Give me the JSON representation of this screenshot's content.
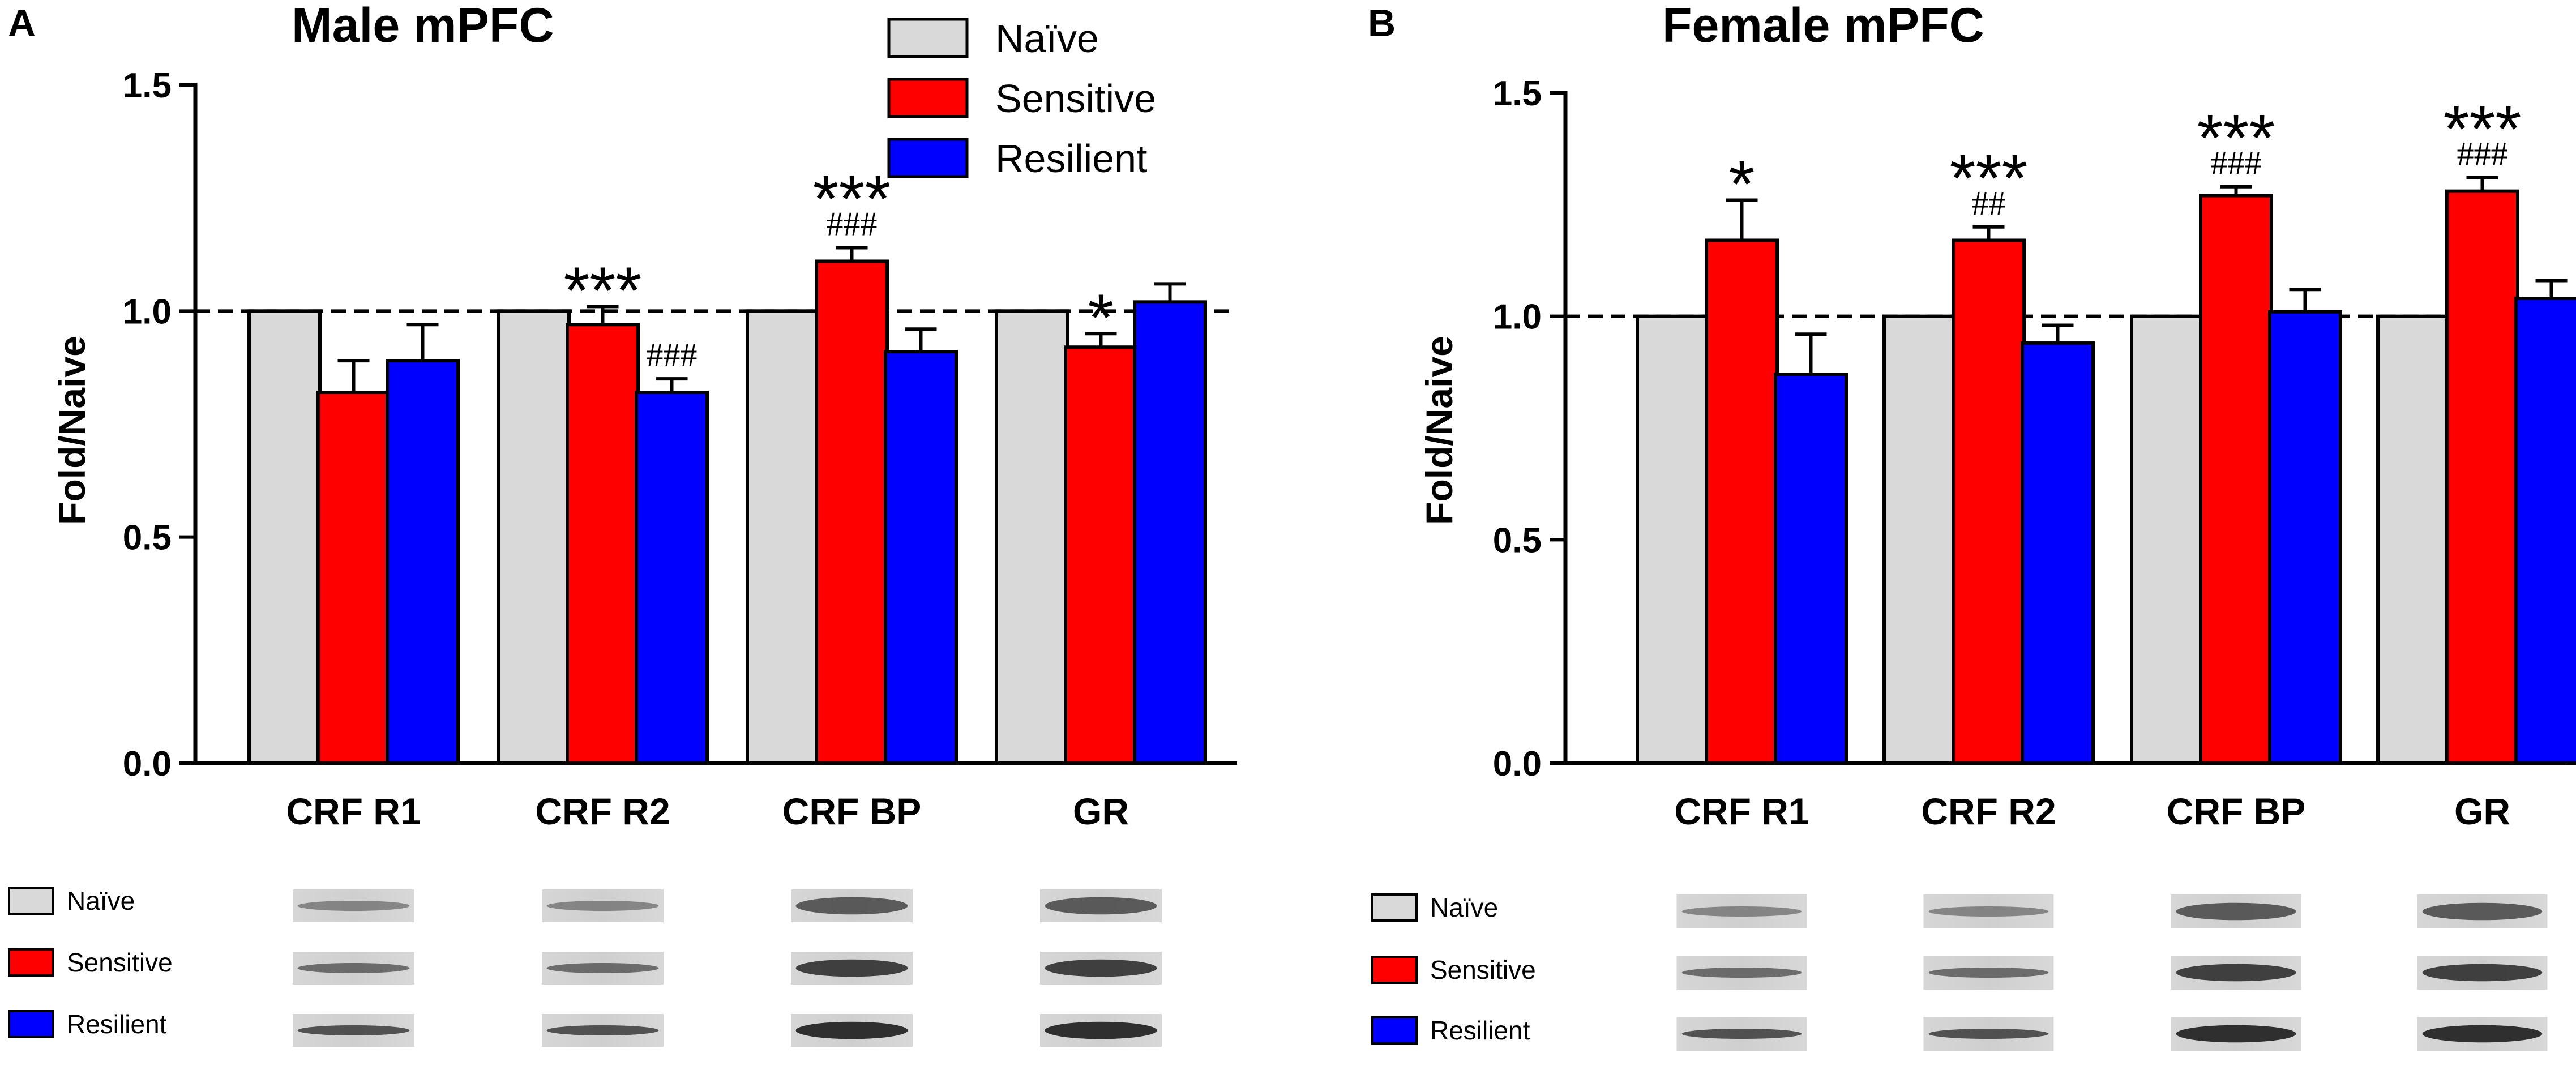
{
  "colors": {
    "naive": "#d9d9d9",
    "sensitive": "#ff0000",
    "resilient": "#0000ff"
  },
  "legend": [
    "Naïve",
    "Sensitive",
    "Resilient"
  ],
  "chart_data": [
    {
      "type": "bar",
      "panel": "A",
      "title": "Male mPFC",
      "xlabel": "",
      "ylabel": "Fold/Naive",
      "ylim": [
        0,
        1.5
      ],
      "yticks": [
        "0.0",
        "0.5",
        "1.0",
        "1.5"
      ],
      "reference_line": 1.0,
      "categories": [
        "CRF R1",
        "CRF R2",
        "CRF BP",
        "GR"
      ],
      "series": [
        {
          "name": "Naïve",
          "values": [
            1.0,
            1.0,
            1.0,
            1.0
          ],
          "errors": [
            0,
            0,
            0,
            0
          ]
        },
        {
          "name": "Sensitive",
          "values": [
            0.82,
            0.97,
            1.11,
            0.92
          ],
          "errors": [
            0.07,
            0.04,
            0.03,
            0.03
          ]
        },
        {
          "name": "Resilient",
          "values": [
            0.89,
            0.82,
            0.91,
            1.02
          ],
          "errors": [
            0.08,
            0.03,
            0.05,
            0.04
          ]
        }
      ],
      "annotations": [
        {
          "category": 1,
          "series": 1,
          "stars": "***",
          "hashes": ""
        },
        {
          "category": 1,
          "series": 2,
          "stars": "",
          "hashes": "###"
        },
        {
          "category": 2,
          "series": 1,
          "stars": "***",
          "hashes": "###"
        },
        {
          "category": 3,
          "series": 1,
          "stars": "*",
          "hashes": ""
        }
      ],
      "blot_legend": [
        "Naïve",
        "Sensitive",
        "Resilient"
      ]
    },
    {
      "type": "bar",
      "panel": "B",
      "title": "Female mPFC",
      "xlabel": "",
      "ylabel": "Fold/Naive",
      "ylim": [
        0,
        1.5
      ],
      "yticks": [
        "0.0",
        "0.5",
        "1.0",
        "1.5"
      ],
      "reference_line": 1.0,
      "categories": [
        "CRF R1",
        "CRF R2",
        "CRF BP",
        "GR"
      ],
      "series": [
        {
          "name": "Naïve",
          "values": [
            1.0,
            1.0,
            1.0,
            1.0
          ],
          "errors": [
            0,
            0,
            0,
            0
          ]
        },
        {
          "name": "Sensitive",
          "values": [
            1.17,
            1.17,
            1.27,
            1.28
          ],
          "errors": [
            0.09,
            0.03,
            0.02,
            0.03
          ]
        },
        {
          "name": "Resilient",
          "values": [
            0.87,
            0.94,
            1.01,
            1.04
          ],
          "errors": [
            0.09,
            0.04,
            0.05,
            0.04
          ]
        }
      ],
      "annotations": [
        {
          "category": 0,
          "series": 1,
          "stars": "*",
          "hashes": ""
        },
        {
          "category": 1,
          "series": 1,
          "stars": "***",
          "hashes": "##"
        },
        {
          "category": 2,
          "series": 1,
          "stars": "***",
          "hashes": "###"
        },
        {
          "category": 3,
          "series": 1,
          "stars": "***",
          "hashes": "###"
        }
      ],
      "blot_legend": [
        "Naïve",
        "Sensitive",
        "Resilient"
      ]
    }
  ]
}
